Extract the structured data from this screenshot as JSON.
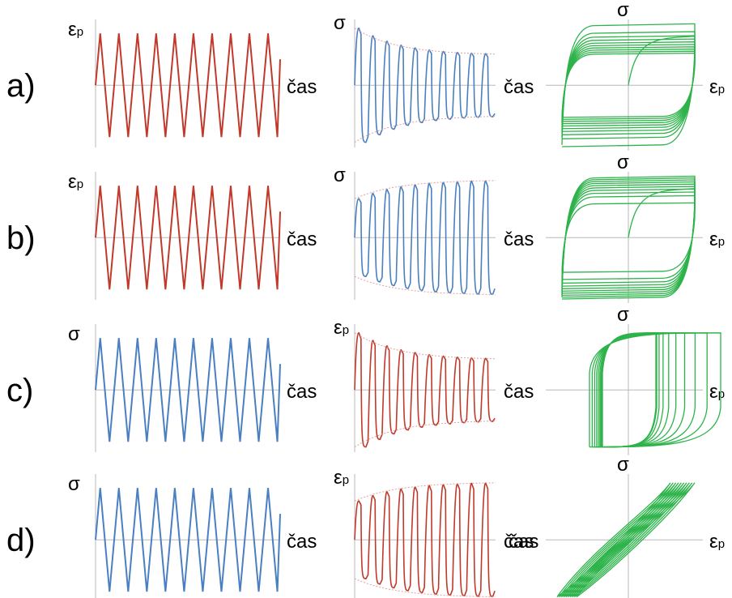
{
  "rows": [
    {
      "label": "a)",
      "input": {
        "symbol": "ε",
        "sub": "p",
        "time_label": "čas",
        "kind": "triangle",
        "color": "#c0392b"
      },
      "response": {
        "symbol": "σ",
        "time_label": "čas",
        "kind": "square-decay",
        "color": "#4a7fc1"
      },
      "loop": {
        "y_symbol": "σ",
        "x_symbol": "ε",
        "x_sub": "p",
        "kind": "loop-cyclic-softening",
        "color": "#2db34a"
      }
    },
    {
      "label": "b)",
      "input": {
        "symbol": "ε",
        "sub": "p",
        "time_label": "čas",
        "kind": "triangle",
        "color": "#c0392b"
      },
      "response": {
        "symbol": "σ",
        "time_label": "čas",
        "kind": "square-grow",
        "color": "#4a7fc1"
      },
      "loop": {
        "y_symbol": "σ",
        "x_symbol": "ε",
        "x_sub": "p",
        "kind": "loop-cyclic-hardening",
        "color": "#2db34a"
      }
    },
    {
      "label": "c)",
      "input": {
        "symbol": "σ",
        "sub": "",
        "time_label": "čas",
        "kind": "triangle",
        "color": "#4a7fc1"
      },
      "response": {
        "symbol": "ε",
        "sub": "p",
        "time_label": "čas",
        "kind": "square-decay",
        "color": "#c0392b"
      },
      "loop": {
        "y_symbol": "σ",
        "x_symbol": "ε",
        "x_sub": "p",
        "kind": "loop-shakedown",
        "color": "#2db34a"
      }
    },
    {
      "label": "d)",
      "input": {
        "symbol": "σ",
        "sub": "",
        "time_label": "čas",
        "kind": "triangle",
        "color": "#4a7fc1"
      },
      "response": {
        "symbol": "ε",
        "sub": "p",
        "time_label": "čas",
        "kind": "square-grow",
        "color": "#c0392b"
      },
      "loop": {
        "y_symbol": "σ",
        "x_symbol": "ε",
        "x_sub": "p",
        "left_label": "čas",
        "kind": "loop-ratcheting",
        "color": "#2db34a"
      }
    }
  ],
  "cycles": 10
}
